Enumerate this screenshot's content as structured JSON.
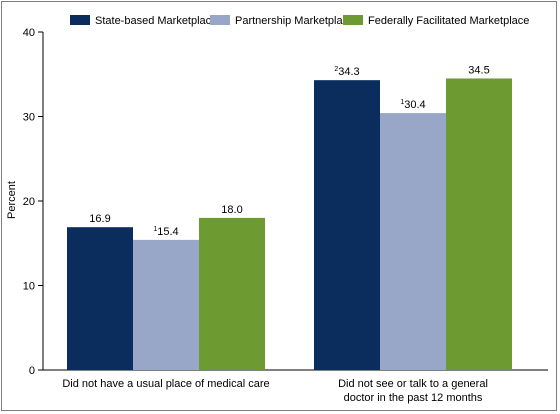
{
  "chart_data": {
    "type": "bar",
    "ylabel": "Percent",
    "ylim": [
      0,
      40
    ],
    "yticks": [
      0,
      10,
      20,
      30,
      40
    ],
    "grid": false,
    "legend_position": "top",
    "categories": [
      [
        "Did not have a usual place of medical care"
      ],
      [
        "Did not see or talk to a general",
        "doctor in the past 12 months"
      ]
    ],
    "series": [
      {
        "name": "State-based Marketplace",
        "color": "#0b2d5e",
        "values": [
          16.9,
          34.3
        ],
        "labels": [
          "16.9",
          "34.3"
        ],
        "label_prefix": [
          "",
          "2"
        ]
      },
      {
        "name": "Partnership Marketplace",
        "color": "#98a6c8",
        "values": [
          15.4,
          30.4
        ],
        "labels": [
          "15.4",
          "30.4"
        ],
        "label_prefix": [
          "1",
          "1"
        ]
      },
      {
        "name": "Federally Facilitated Marketplace",
        "color": "#6d9b32",
        "values": [
          18.0,
          34.5
        ],
        "labels": [
          "18.0",
          "34.5"
        ],
        "label_prefix": [
          "",
          ""
        ]
      }
    ]
  }
}
